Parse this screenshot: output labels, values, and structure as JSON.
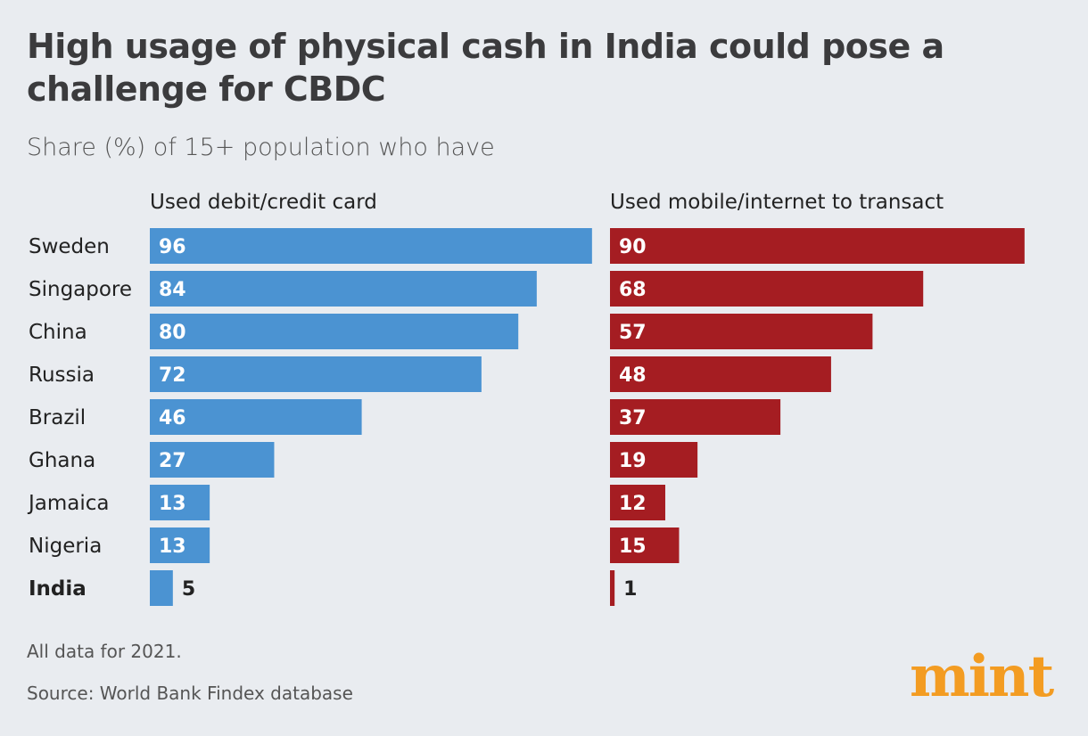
{
  "title": "High usage of physical cash in India could pose a challenge for CBDC",
  "subtitle": "Share (%) of 15+ population who have",
  "note": "All data for 2021.",
  "source": "Source: World Bank Findex database",
  "logo": "mint",
  "colors": {
    "card": "#4b93d2",
    "mobile": "#a51d22",
    "background": "#e9ecf0",
    "logo": "#f39c22"
  },
  "chart_data": {
    "type": "bar",
    "orientation": "horizontal",
    "categories": [
      "Sweden",
      "Singapore",
      "China",
      "Russia",
      "Brazil",
      "Ghana",
      "Jamaica",
      "Nigeria",
      "India"
    ],
    "highlight": "India",
    "series": [
      {
        "name": "Used debit/credit card",
        "values": [
          96,
          84,
          80,
          72,
          46,
          27,
          13,
          13,
          5
        ]
      },
      {
        "name": "Used mobile/internet to transact",
        "values": [
          90,
          68,
          57,
          48,
          37,
          19,
          12,
          15,
          1
        ]
      }
    ],
    "xlim": [
      0,
      100
    ],
    "grid": false,
    "data_labels": true
  }
}
